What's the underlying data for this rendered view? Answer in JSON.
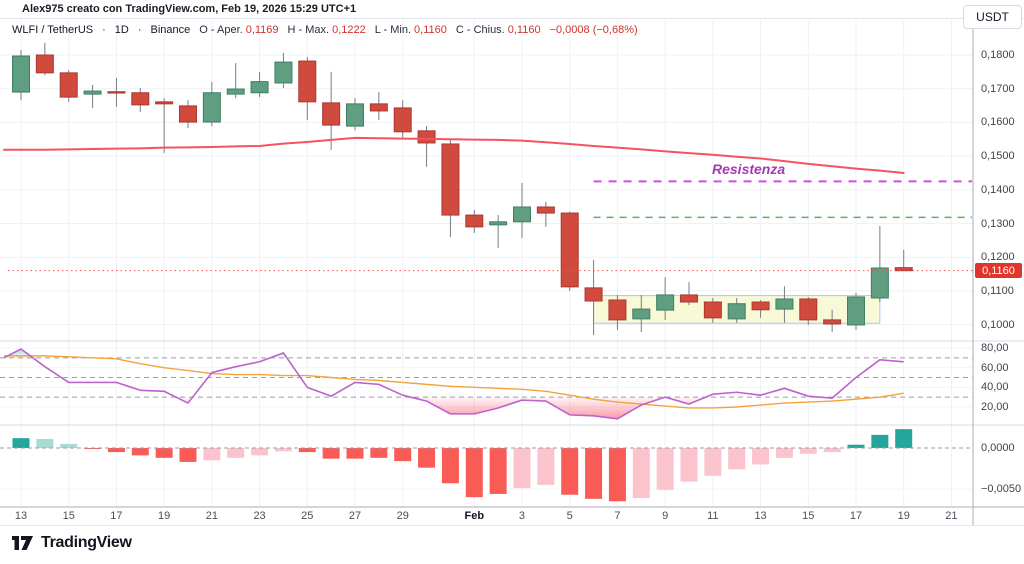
{
  "meta": {
    "attribution": "Alex975 creato con TradingView.com, Feb 19, 2026 15:29 UTC+1",
    "watermark_logo": "TradingView"
  },
  "header": {
    "symbol": "WLFI / TetherUS",
    "separator": "·",
    "interval": "1D",
    "exchange": "Binance",
    "ohlc": [
      {
        "label": "O - Aper.",
        "value": "0,1169"
      },
      {
        "label": "H - Max.",
        "value": "0,1222"
      },
      {
        "label": "L - Min.",
        "value": "0,1160"
      },
      {
        "label": "C - Chius.",
        "value": "0,1160"
      }
    ],
    "change": "−0,0008 (−0,68%)",
    "currency_button": "USDT"
  },
  "price_axis": {
    "levels": [
      {
        "label": "0,1800",
        "value": 0.18
      },
      {
        "label": "0,1700",
        "value": 0.17
      },
      {
        "label": "0,1600",
        "value": 0.16
      },
      {
        "label": "0,1500",
        "value": 0.15
      },
      {
        "label": "0,1400",
        "value": 0.14
      },
      {
        "label": "0,1300",
        "value": 0.13
      },
      {
        "label": "0,1200",
        "value": 0.12
      },
      {
        "label": "0,1100",
        "value": 0.11
      },
      {
        "label": "0,1000",
        "value": 0.1
      }
    ],
    "last_price_tag": {
      "label": "0,1160",
      "value": 0.116,
      "color": "#e0352b"
    }
  },
  "rsi_axis": {
    "levels": [
      {
        "label": "80,00",
        "value": 80
      },
      {
        "label": "60,00",
        "value": 60
      },
      {
        "label": "40,00",
        "value": 40
      },
      {
        "label": "20,00",
        "value": 20
      }
    ]
  },
  "macd_axis": {
    "levels": [
      {
        "label": "0,0000",
        "value": 0
      },
      {
        "label": "−0,0050",
        "value": -0.005
      }
    ]
  },
  "time_axis": {
    "ticks": [
      {
        "i": 0,
        "label": "13"
      },
      {
        "i": 2,
        "label": "15"
      },
      {
        "i": 4,
        "label": "17"
      },
      {
        "i": 6,
        "label": "19"
      },
      {
        "i": 8,
        "label": "21"
      },
      {
        "i": 10,
        "label": "23"
      },
      {
        "i": 12,
        "label": "25"
      },
      {
        "i": 14,
        "label": "27"
      },
      {
        "i": 16,
        "label": "29"
      },
      {
        "i": 19,
        "label": "Feb",
        "bold": true
      },
      {
        "i": 21,
        "label": "3"
      },
      {
        "i": 23,
        "label": "5"
      },
      {
        "i": 25,
        "label": "7"
      },
      {
        "i": 27,
        "label": "9"
      },
      {
        "i": 29,
        "label": "11"
      },
      {
        "i": 31,
        "label": "13"
      },
      {
        "i": 33,
        "label": "15"
      },
      {
        "i": 35,
        "label": "17"
      },
      {
        "i": 37,
        "label": "19"
      },
      {
        "i": 39,
        "label": "21"
      }
    ]
  },
  "annotations": {
    "resistance_label": "Resistenza",
    "resistance_label_color": "#a839b5"
  },
  "chart_data": [
    {
      "type": "candlestick",
      "title": "WLFI / TetherUS 1D Binance",
      "ylim": [
        0.095,
        0.1845
      ],
      "dates": [
        "Jan 13",
        "Jan 14",
        "Jan 15",
        "Jan 16",
        "Jan 17",
        "Jan 18",
        "Jan 19",
        "Jan 20",
        "Jan 21",
        "Jan 22",
        "Jan 23",
        "Jan 24",
        "Jan 25",
        "Jan 26",
        "Jan 27",
        "Jan 28",
        "Jan 29",
        "Jan 30",
        "Jan 31",
        "Feb 1",
        "Feb 2",
        "Feb 3",
        "Feb 4",
        "Feb 5",
        "Feb 6",
        "Feb 7",
        "Feb 8",
        "Feb 9",
        "Feb 10",
        "Feb 11",
        "Feb 12",
        "Feb 13",
        "Feb 14",
        "Feb 15",
        "Feb 16",
        "Feb 17",
        "Feb 18",
        "Feb 19"
      ],
      "ohlc": [
        [
          0.169,
          0.1815,
          0.1666,
          0.1797
        ],
        [
          0.18,
          0.1836,
          0.174,
          0.1747
        ],
        [
          0.1747,
          0.1755,
          0.1661,
          0.1675
        ],
        [
          0.1684,
          0.1711,
          0.1643,
          0.1693
        ],
        [
          0.1691,
          0.1732,
          0.1646,
          0.1688
        ],
        [
          0.1688,
          0.1702,
          0.1631,
          0.1652
        ],
        [
          0.1661,
          0.1672,
          0.1509,
          0.1655
        ],
        [
          0.1649,
          0.1666,
          0.1583,
          0.1601
        ],
        [
          0.1601,
          0.172,
          0.1589,
          0.1688
        ],
        [
          0.1684,
          0.1776,
          0.1672,
          0.1699
        ],
        [
          0.1688,
          0.175,
          0.1675,
          0.1721
        ],
        [
          0.1717,
          0.1806,
          0.1702,
          0.1779
        ],
        [
          0.1782,
          0.1794,
          0.1607,
          0.1661
        ],
        [
          0.1658,
          0.175,
          0.1518,
          0.1592
        ],
        [
          0.1589,
          0.1672,
          0.1577,
          0.1655
        ],
        [
          0.1655,
          0.169,
          0.1607,
          0.1634
        ],
        [
          0.1643,
          0.1666,
          0.1554,
          0.1572
        ],
        [
          0.1575,
          0.1589,
          0.1468,
          0.1539
        ],
        [
          0.1536,
          0.1548,
          0.126,
          0.1325
        ],
        [
          0.1325,
          0.134,
          0.1272,
          0.129
        ],
        [
          0.1296,
          0.1325,
          0.1227,
          0.1305
        ],
        [
          0.1305,
          0.142,
          0.1257,
          0.1349
        ],
        [
          0.1349,
          0.1364,
          0.129,
          0.1331
        ],
        [
          0.1331,
          0.1335,
          0.11,
          0.1112
        ],
        [
          0.1109,
          0.1192,
          0.0969,
          0.107
        ],
        [
          0.1073,
          0.1088,
          0.0984,
          0.1014
        ],
        [
          0.1017,
          0.1088,
          0.0978,
          0.1046
        ],
        [
          0.1043,
          0.1141,
          0.1014,
          0.1088
        ],
        [
          0.1088,
          0.1126,
          0.1058,
          0.1067
        ],
        [
          0.1067,
          0.1079,
          0.1005,
          0.102
        ],
        [
          0.1017,
          0.1079,
          0.1005,
          0.1062
        ],
        [
          0.1067,
          0.1073,
          0.102,
          0.1044
        ],
        [
          0.1046,
          0.1114,
          0.1005,
          0.1076
        ],
        [
          0.1076,
          0.1082,
          0.0999,
          0.1014
        ],
        [
          0.1014,
          0.1044,
          0.0978,
          0.1002
        ],
        [
          0.0999,
          0.1094,
          0.0984,
          0.1082
        ],
        [
          0.1079,
          0.1293,
          0.1067,
          0.1168
        ],
        [
          0.1169,
          0.1222,
          0.116,
          0.116
        ]
      ],
      "overlays": {
        "ma_line": {
          "color": "#f7525f",
          "values": [
            0.1519,
            0.1519,
            0.152,
            0.1521,
            0.1522,
            0.1523,
            0.1525,
            0.1526,
            0.1527,
            0.1529,
            0.153,
            0.1537,
            0.1542,
            0.1548,
            0.1554,
            0.1553,
            0.1552,
            0.1551,
            0.155,
            0.1549,
            0.1548,
            0.1546,
            0.1541,
            0.1536,
            0.153,
            0.1525,
            0.152,
            0.1514,
            0.1509,
            0.1504,
            0.1498,
            0.1493,
            0.1485,
            0.1477,
            0.147,
            0.1463,
            0.1457,
            0.145
          ]
        }
      },
      "resistance_lines": [
        {
          "price": 0.1425,
          "color": "#d14fd6",
          "style": "dashed",
          "label": "Resistenza",
          "start_date": "Feb 6"
        },
        {
          "price": 0.1318,
          "color": "#5cb35f",
          "style": "dashed",
          "start_date": "Feb 6"
        }
      ],
      "consolidation_box": {
        "from_date": "Feb 6",
        "to_date": "Feb 18",
        "top": 0.1086,
        "bottom": 0.1004,
        "fill": "#f6f8cd",
        "border": "#a9c9ef"
      },
      "last_price": {
        "value": 0.116
      },
      "colors": {
        "up": "#5f9e80",
        "up_border": "#3f7f63",
        "down": "#d04a3e",
        "down_border": "#aa392f",
        "wick": "#787b86"
      }
    },
    {
      "type": "line",
      "name": "oscillator",
      "ylim": [
        0,
        90
      ],
      "bands": {
        "upper": 70,
        "middle": 50,
        "lower": 30
      },
      "lead_in": {
        "line_purple": 70,
        "line_orange": 72
      },
      "series": [
        {
          "name": "line_purple",
          "color": "#bd62cd",
          "values": [
            79,
            61,
            45,
            45,
            45,
            37,
            36,
            24,
            55,
            61,
            66,
            75,
            40,
            31,
            45,
            43,
            32,
            26,
            13,
            13,
            19,
            27,
            26,
            12,
            11,
            8,
            22,
            30,
            23,
            33,
            35,
            32,
            39,
            31,
            29,
            50,
            68,
            66
          ]
        },
        {
          "name": "line_orange",
          "color": "#f2a33c",
          "values": [
            72,
            72,
            71,
            70,
            69,
            64,
            60,
            57,
            54,
            53,
            53,
            52,
            52,
            50,
            48,
            47,
            45,
            43,
            41,
            40,
            39,
            38,
            36,
            32,
            28,
            25,
            23,
            21,
            19,
            19,
            20,
            22,
            24,
            25,
            26,
            28,
            30,
            34
          ]
        }
      ],
      "fills": {
        "overbought": "#26a69a",
        "oversold": "#f6465d"
      }
    },
    {
      "type": "bar",
      "name": "histogram",
      "ylim": [
        -0.0072,
        0.0028
      ],
      "zero_line": 0,
      "values": [
        0.0012,
        0.0011,
        0.0005,
        -0.0001,
        -0.0005,
        -0.0009,
        -0.0012,
        -0.0017,
        -0.0015,
        -0.0012,
        -0.0009,
        -0.0004,
        -0.0005,
        -0.0013,
        -0.0013,
        -0.0012,
        -0.0016,
        -0.0024,
        -0.0043,
        -0.006,
        -0.0056,
        -0.0049,
        -0.0045,
        -0.0057,
        -0.0062,
        -0.0065,
        -0.0061,
        -0.0051,
        -0.0041,
        -0.0034,
        -0.0026,
        -0.002,
        -0.0012,
        -0.0007,
        -0.0005,
        0.0004,
        0.0016,
        0.0023
      ],
      "bar_colors": [
        "teal",
        "teal_light",
        "teal_light",
        "red",
        "red",
        "red",
        "red",
        "red",
        "pink",
        "pink",
        "pink",
        "pink",
        "red",
        "red",
        "red",
        "red",
        "red",
        "red",
        "red",
        "red",
        "red",
        "pink",
        "pink",
        "red",
        "red",
        "red",
        "pink",
        "pink",
        "pink",
        "pink",
        "pink",
        "pink",
        "pink",
        "pink",
        "pink",
        "teal",
        "teal",
        "teal"
      ],
      "palette": {
        "teal": "#26a69a",
        "teal_light": "#a8dbd2",
        "red": "#f95c56",
        "pink": "#fbc3cc"
      }
    }
  ]
}
